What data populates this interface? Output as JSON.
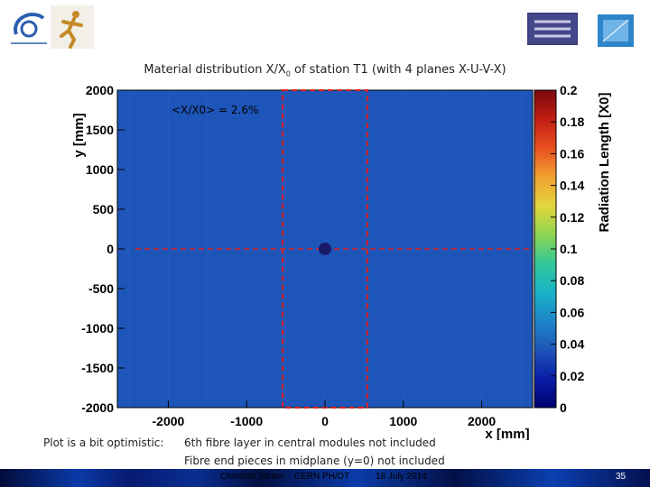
{
  "slide": {
    "title": "Material distribution X/X",
    "title_sub": "0",
    "title_rest": " of station T1 (with 4 planes X-U-V-X)",
    "note_label": "Plot is a bit optimistic:",
    "note_line1": "6th fibre layer in central modules not included",
    "note_line2": "Fibre end pieces in midplane (y=0) not included",
    "footer_author": "Christian Joram",
    "footer_org": "CERN  PH/DT",
    "footer_date": "18 July 2014",
    "page_number": "35"
  },
  "chart_data": {
    "type": "heatmap",
    "xlabel": "x [mm]",
    "ylabel": "y [mm]",
    "zlabel": "Radiation Length [X0]",
    "xlim": [
      -2650,
      2650
    ],
    "ylim": [
      -2000,
      2000
    ],
    "zlim": [
      0,
      0.2
    ],
    "x_ticks": [
      -2000,
      -1000,
      0,
      1000,
      2000
    ],
    "y_ticks": [
      2000,
      1500,
      1000,
      500,
      0,
      -500,
      -1000,
      -1500,
      -2000
    ],
    "z_ticks": [
      "0.2",
      "0.18",
      "0.16",
      "0.14",
      "0.12",
      "0.1",
      "0.08",
      "0.06",
      "0.04",
      "0.02",
      "0"
    ],
    "annotation": "<X/X0> = 2.6%",
    "background_value": 0.026,
    "beam_pipe_center": [
      0,
      0
    ],
    "central_region_box": {
      "x": [
        -540,
        540
      ],
      "y": [
        -2000,
        2000
      ]
    },
    "midplane_y": 0,
    "colors": {
      "plot_fill": "#1e55b8",
      "box_line": "#e02020",
      "beam_pipe": "#1a1a6a"
    },
    "palette": [
      "#00006e",
      "#0a1ea8",
      "#1e55b8",
      "#1e86c8",
      "#19b3c8",
      "#32c896",
      "#8ed450",
      "#e3d63c",
      "#f0a030",
      "#e8501e",
      "#c21e14",
      "#7a0a0a"
    ]
  }
}
